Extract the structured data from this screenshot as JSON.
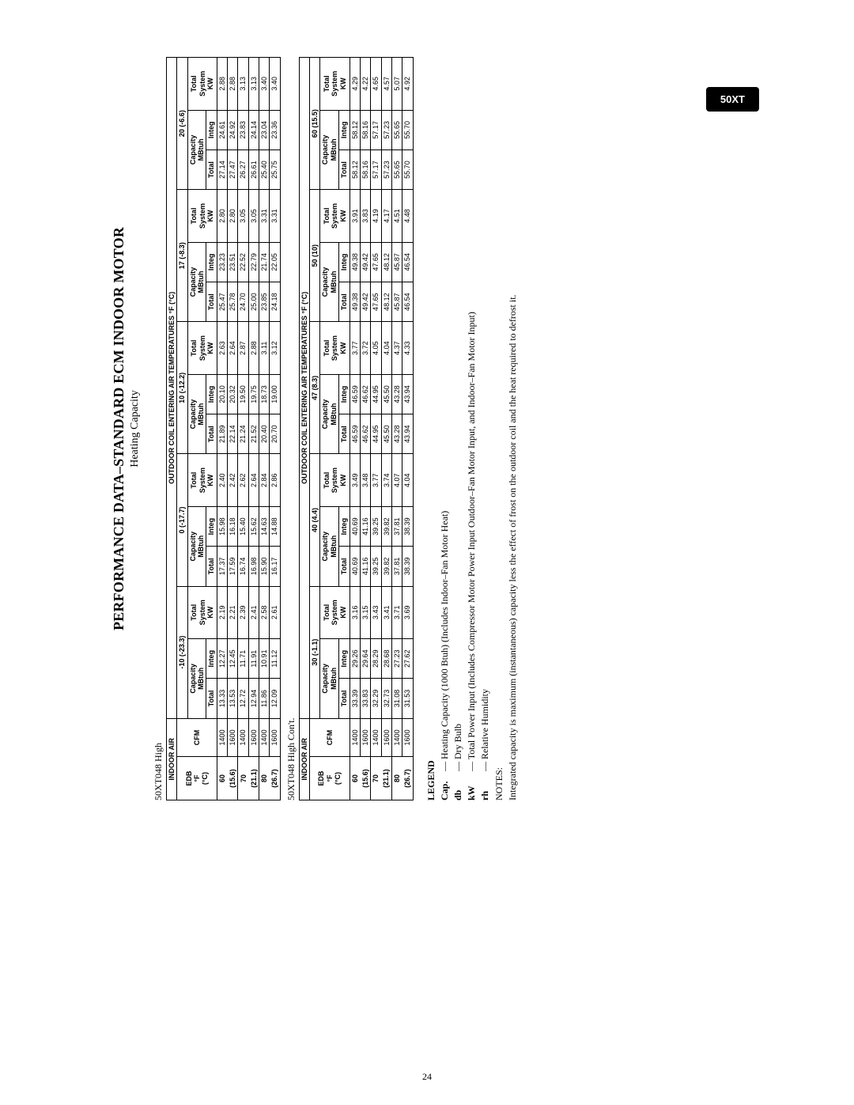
{
  "tab": "50XT",
  "title": "PERFORMANCE DATA–STANDARD ECM INDOOR MOTOR",
  "subtitle": "Heating Capacity",
  "page_number": "24",
  "tables": [
    {
      "label": "50XT048 High",
      "outdoor_header": "OUTDOOR COIL ENTERING AIR TEMPERATURES °F (°C)",
      "indoor_header": "INDOOR AIR",
      "edb_header_lines": [
        "EDB",
        "°F",
        "(°C)"
      ],
      "cfm_header": "CFM",
      "temp_cols": [
        {
          "label": "-10 (-23.3)"
        },
        {
          "label": "0 (-17.7)"
        },
        {
          "label": "10 (-12.2)"
        },
        {
          "label": "17 (-8.3)"
        },
        {
          "label": "20 (-6.6)"
        }
      ],
      "col_sub": {
        "cap": "Capacity\nMBtuh",
        "sys": "Total\nSystem\nKW",
        "total": "Total",
        "integ": "Integ"
      },
      "rows": [
        {
          "edb": [
            "60",
            "(15.6)"
          ],
          "cfm": [
            "1400",
            "1600"
          ],
          "vals": [
            [
              "13.33",
              "12.27",
              "2.19",
              "17.37",
              "15.98",
              "2.40",
              "21.89",
              "20.10",
              "2.63",
              "25.47",
              "23.23",
              "2.80",
              "27.14",
              "24.61",
              "2.88"
            ],
            [
              "13.53",
              "12.45",
              "2.21",
              "17.59",
              "16.18",
              "2.42",
              "22.14",
              "20.32",
              "2.64",
              "25.78",
              "23.51",
              "2.80",
              "27.47",
              "24.92",
              "2.88"
            ]
          ]
        },
        {
          "edb": [
            "70",
            "(21.1)"
          ],
          "cfm": [
            "1400",
            "1600"
          ],
          "vals": [
            [
              "12.72",
              "11.71",
              "2.39",
              "16.74",
              "15.40",
              "2.62",
              "21.24",
              "19.50",
              "2.87",
              "24.70",
              "22.52",
              "3.05",
              "26.27",
              "23.83",
              "3.13"
            ],
            [
              "12.94",
              "11.91",
              "2.41",
              "16.98",
              "15.62",
              "2.64",
              "21.52",
              "19.75",
              "2.88",
              "25.00",
              "22.79",
              "3.05",
              "26.61",
              "24.14",
              "3.13"
            ]
          ]
        },
        {
          "edb": [
            "80",
            "(26.7)"
          ],
          "cfm": [
            "1400",
            "1600"
          ],
          "vals": [
            [
              "11.86",
              "10.91",
              "2.58",
              "15.90",
              "14.63",
              "2.84",
              "20.40",
              "18.73",
              "3.11",
              "23.85",
              "21.74",
              "3.31",
              "25.40",
              "23.04",
              "3.40"
            ],
            [
              "12.09",
              "11.12",
              "2.61",
              "16.17",
              "14.88",
              "2.86",
              "20.70",
              "19.00",
              "3.12",
              "24.18",
              "22.05",
              "3.31",
              "25.75",
              "23.36",
              "3.40"
            ]
          ]
        }
      ]
    },
    {
      "label": "50XT048 High Con't.",
      "outdoor_header": "OUTDOOR COIL ENTERING AIR TEMPERATURES °F (°C)",
      "indoor_header": "INDOOR AIR",
      "edb_header_lines": [
        "EDB",
        "°F",
        "(°C)"
      ],
      "cfm_header": "CFM",
      "temp_cols": [
        {
          "label": "30 (-1.1)"
        },
        {
          "label": "40 (4.4)"
        },
        {
          "label": "47 (8.3)"
        },
        {
          "label": "50 (10)"
        },
        {
          "label": "60 (15.5)"
        }
      ],
      "col_sub": {
        "cap": "Capacity\nMBtuh",
        "sys": "Total\nSystem\nKW",
        "total": "Total",
        "integ": "Integ"
      },
      "rows": [
        {
          "edb": [
            "60",
            "(15.6)"
          ],
          "cfm": [
            "1400",
            "1600"
          ],
          "vals": [
            [
              "33.39",
              "29.26",
              "3.16",
              "40.69",
              "40.69",
              "3.49",
              "46.59",
              "46.59",
              "3.77",
              "49.38",
              "49.38",
              "3.91",
              "58.12",
              "58.12",
              "4.29"
            ],
            [
              "33.83",
              "29.64",
              "3.15",
              "41.16",
              "41.16",
              "3.48",
              "46.62",
              "46.62",
              "3.72",
              "49.42",
              "49.42",
              "3.83",
              "58.16",
              "58.16",
              "4.22"
            ]
          ]
        },
        {
          "edb": [
            "70",
            "(21.1)"
          ],
          "cfm": [
            "1400",
            "1600"
          ],
          "vals": [
            [
              "32.29",
              "28.29",
              "3.43",
              "39.25",
              "39.25",
              "3.77",
              "44.95",
              "44.95",
              "4.05",
              "47.65",
              "47.65",
              "4.19",
              "57.17",
              "57.17",
              "4.65"
            ],
            [
              "32.73",
              "28.68",
              "3.41",
              "39.82",
              "39.82",
              "3.74",
              "45.50",
              "45.50",
              "4.04",
              "48.12",
              "48.12",
              "4.17",
              "57.23",
              "57.23",
              "4.57"
            ]
          ]
        },
        {
          "edb": [
            "80",
            "(26.7)"
          ],
          "cfm": [
            "1400",
            "1600"
          ],
          "vals": [
            [
              "31.08",
              "27.23",
              "3.71",
              "37.81",
              "37.81",
              "4.07",
              "43.28",
              "43.28",
              "4.37",
              "45.87",
              "45.87",
              "4.51",
              "55.65",
              "55.65",
              "5.07"
            ],
            [
              "31.53",
              "27.62",
              "3.69",
              "38.39",
              "38.39",
              "4.04",
              "43.94",
              "43.94",
              "4.33",
              "46.54",
              "46.54",
              "4.48",
              "55.70",
              "55.70",
              "4.92"
            ]
          ]
        }
      ]
    }
  ],
  "legend": {
    "heading": "LEGEND",
    "items": [
      {
        "k": "Cap.",
        "sep": "—",
        "v": "Heating Capacity (1000 Btuh) (Includes Indoor–Fan Motor Heat)"
      },
      {
        "k": "db",
        "sep": "—",
        "v": "Dry Bulb"
      },
      {
        "k": "kW",
        "sep": "—",
        "v": "Total Power Input (Includes Compressor Motor Power Input Outdoor–Fan Motor Input, and Indoor–Fan Motor Input)"
      },
      {
        "k": "rh",
        "sep": "—",
        "v": "Relative Humidity"
      }
    ],
    "notes_label": "NOTES:",
    "note": "Integrated capacity is maximum (instantaneous) capacity less the effect of frost on the outdoor coil and the heat required to defrost it."
  }
}
